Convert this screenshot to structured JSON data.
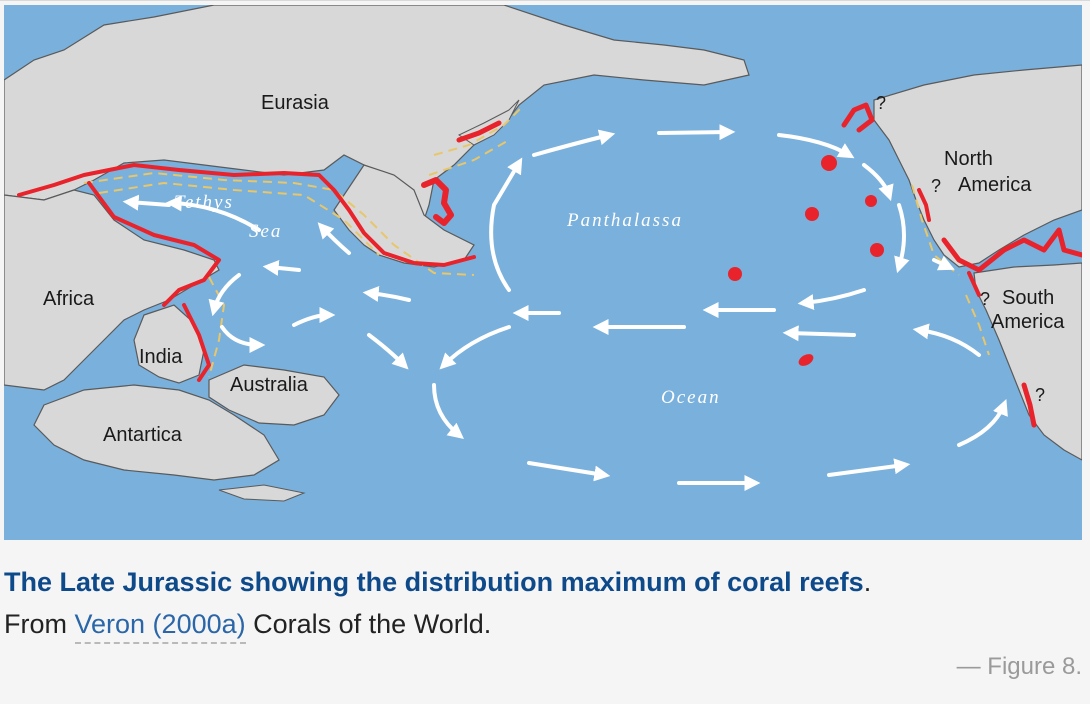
{
  "map": {
    "colors": {
      "ocean": "#7ab0dc",
      "land": "#d8d8d8",
      "coastline": "#5a5a5a",
      "reef": "#e8232b",
      "current_arrow": "#ffffff",
      "shelf_dash": "#e8c66a"
    },
    "labels": {
      "eurasia": "Eurasia",
      "north_america_line1": "North",
      "north_america_line2": "America",
      "south_america_line1": "South",
      "south_america_line2": "America",
      "africa": "Africa",
      "india": "India",
      "australia": "Australia",
      "antarctica": "Antartica",
      "tethys": "Tethys",
      "sea": "Sea",
      "panthalassa": "Panthalassa",
      "ocean": "Ocean",
      "question": "?"
    }
  },
  "caption": {
    "title": "The Late Jurassic showing the distribution maximum of coral reefs",
    "title_period": ".",
    "prefix": "From ",
    "link_text": "Veron (2000a)",
    "suffix": " Corals of the World."
  },
  "figure_number": "— Figure 8."
}
